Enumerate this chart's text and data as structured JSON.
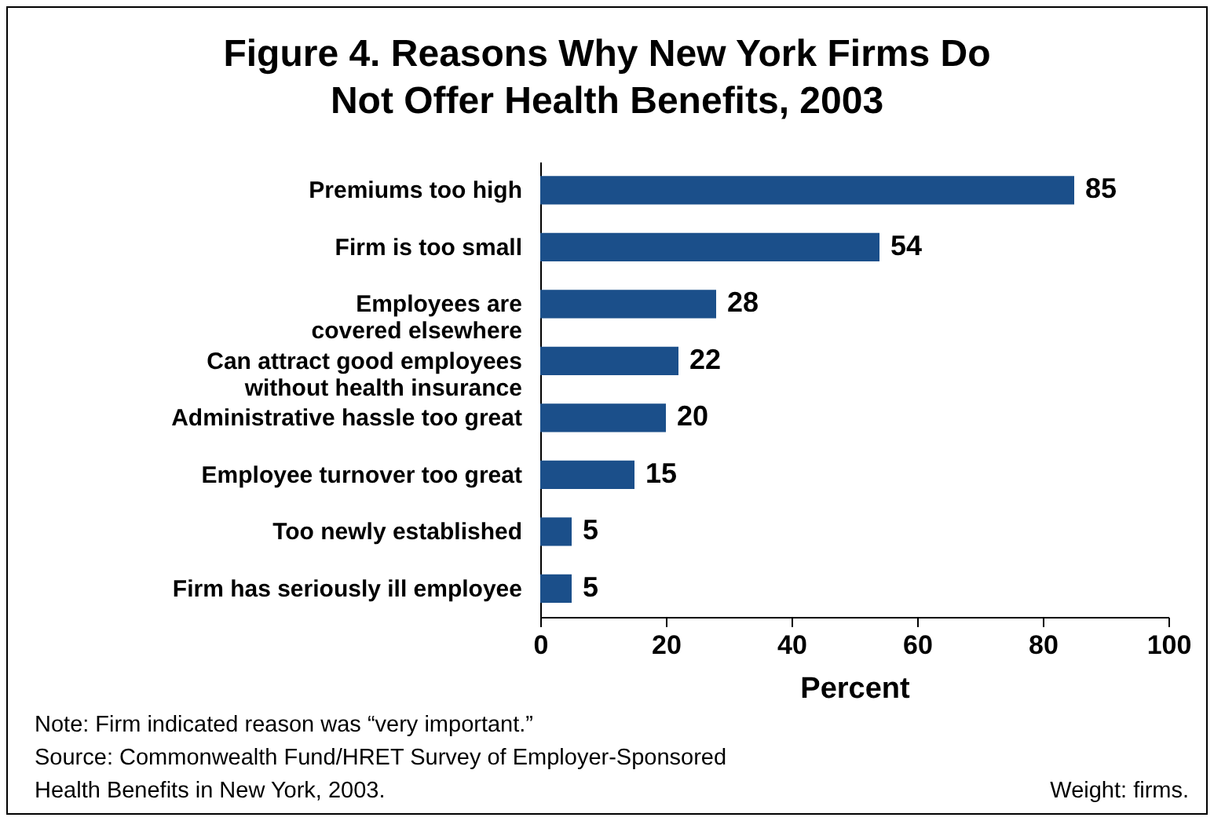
{
  "chart_data": {
    "type": "bar",
    "orientation": "horizontal",
    "title": "Figure 4. Reasons Why New York Firms Do Not Offer Health Benefits, 2003",
    "xlabel": "Percent",
    "categories": [
      "Premiums too high",
      "Firm is too small",
      "Employees are\ncovered elsewhere",
      "Can attract good employees\nwithout health insurance",
      "Administrative hassle too great",
      "Employee turnover too great",
      "Too newly established",
      "Firm has seriously ill employee"
    ],
    "values": [
      85,
      54,
      28,
      22,
      20,
      15,
      5,
      5
    ],
    "color": "#1b4f8a",
    "xlim": [
      0,
      100
    ],
    "xticks": [
      0,
      20,
      40,
      60,
      80,
      100
    ],
    "data_labels": true,
    "grid": false,
    "annotations": [
      "Note: Firm indicated reason was “very important.”",
      "Source: Commonwealth Fund/HRET Survey of Employer-Sponsored\nHealth Benefits in New York, 2003.",
      "Weight: firms."
    ]
  }
}
